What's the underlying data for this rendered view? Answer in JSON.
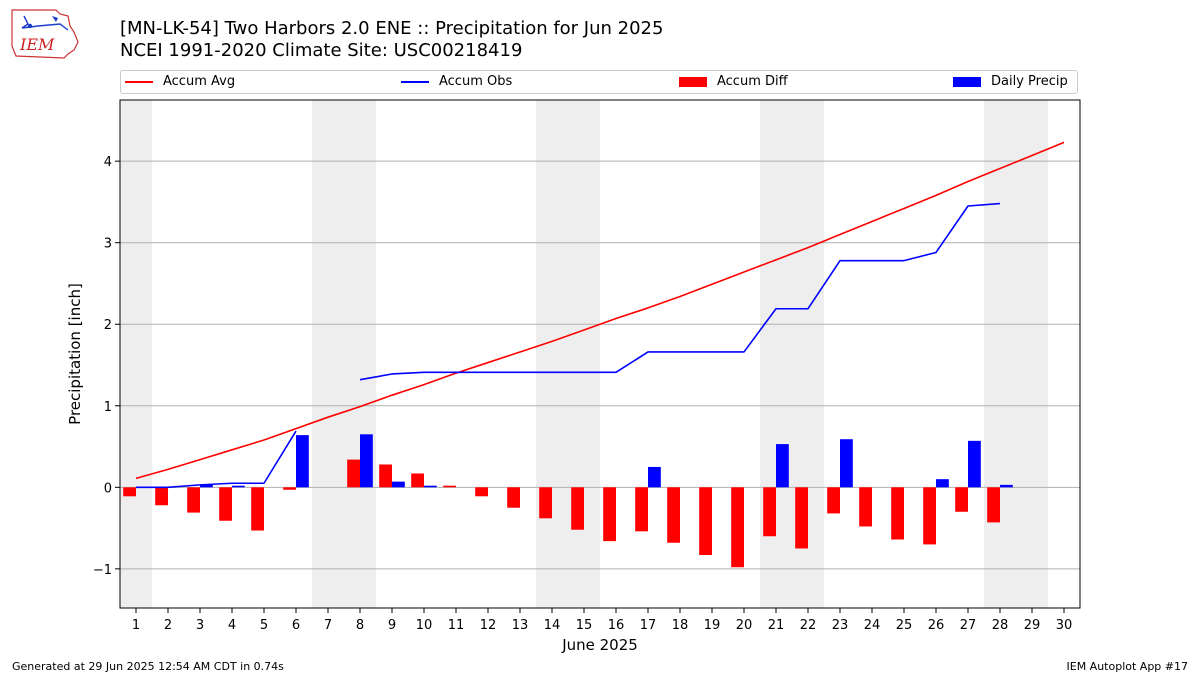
{
  "header": {
    "logo_text": "IEM",
    "title_line1": "[MN-LK-54] Two Harbors 2.0 ENE :: Precipitation for Jun 2025",
    "title_line2": "NCEI 1991-2020 Climate Site: USC00218419"
  },
  "footer": {
    "generated": "Generated at 29 Jun 2025 12:54 AM CDT in 0.74s",
    "app": "IEM Autoplot App #17"
  },
  "chart_data": {
    "type": "bar",
    "title": "[MN-LK-54] Two Harbors 2.0 ENE :: Precipitation for Jun 2025",
    "subtitle": "NCEI 1991-2020 Climate Site: USC00218419",
    "xlabel": "June 2025",
    "ylabel": "Precipitation [inch]",
    "xlim": [
      0.5,
      30.5
    ],
    "ylim": [
      -1.48,
      4.75
    ],
    "yticks": [
      -1,
      0,
      1,
      2,
      3,
      4
    ],
    "ytick_labels": [
      "−1",
      "0",
      "1",
      "2",
      "3",
      "4"
    ],
    "categories": [
      "1",
      "2",
      "3",
      "4",
      "5",
      "6",
      "7",
      "8",
      "9",
      "10",
      "11",
      "12",
      "13",
      "14",
      "15",
      "16",
      "17",
      "18",
      "19",
      "20",
      "21",
      "22",
      "23",
      "24",
      "25",
      "26",
      "27",
      "28",
      "29",
      "30"
    ],
    "weekend_shading": [
      [
        0.5,
        1.5
      ],
      [
        6.5,
        8.5
      ],
      [
        13.5,
        15.5
      ],
      [
        20.5,
        22.5
      ],
      [
        27.5,
        29.5
      ]
    ],
    "grid": "horizontal",
    "legend_position": "top",
    "colors": {
      "avg": "#ff0000",
      "obs": "#0000ff",
      "diff": "#ff0000",
      "daily": "#0000ff",
      "shade": "#eeeeee"
    },
    "series": [
      {
        "name": "Accum Avg",
        "kind": "line",
        "color": "#ff0000",
        "x": [
          1,
          2,
          3,
          4,
          5,
          6,
          7,
          8,
          9,
          10,
          11,
          12,
          13,
          14,
          15,
          16,
          17,
          18,
          19,
          20,
          21,
          22,
          23,
          24,
          25,
          26,
          27,
          28,
          29,
          30
        ],
        "values": [
          0.11,
          0.22,
          0.34,
          0.46,
          0.58,
          0.72,
          0.86,
          0.99,
          1.13,
          1.26,
          1.4,
          1.53,
          1.66,
          1.79,
          1.93,
          2.07,
          2.2,
          2.34,
          2.49,
          2.64,
          2.79,
          2.94,
          3.1,
          3.26,
          3.42,
          3.58,
          3.75,
          3.91,
          4.07,
          4.23
        ]
      },
      {
        "name": "Accum Obs",
        "kind": "line",
        "color": "#0000ff",
        "x": [
          1,
          2,
          3,
          4,
          5,
          6,
          7,
          8,
          9,
          10,
          11,
          12,
          13,
          14,
          15,
          16,
          17,
          18,
          19,
          20,
          21,
          22,
          23,
          24,
          25,
          26,
          27,
          28
        ],
        "values": [
          0.0,
          0.0,
          0.03,
          0.05,
          0.05,
          0.69,
          null,
          1.32,
          1.39,
          1.41,
          1.41,
          1.41,
          1.41,
          1.41,
          1.41,
          1.41,
          1.66,
          1.66,
          1.66,
          1.66,
          2.19,
          2.19,
          2.78,
          2.78,
          2.78,
          2.88,
          3.45,
          3.48
        ]
      },
      {
        "name": "Accum Diff",
        "kind": "bar",
        "color": "#ff0000",
        "x": [
          1,
          2,
          3,
          4,
          5,
          6,
          7,
          8,
          9,
          10,
          11,
          12,
          13,
          14,
          15,
          16,
          17,
          18,
          19,
          20,
          21,
          22,
          23,
          24,
          25,
          26,
          27,
          28
        ],
        "values": [
          -0.11,
          -0.22,
          -0.31,
          -0.41,
          -0.53,
          -0.03,
          null,
          0.34,
          0.28,
          0.17,
          0.02,
          -0.11,
          -0.25,
          -0.38,
          -0.52,
          -0.66,
          -0.54,
          -0.68,
          -0.83,
          -0.98,
          -0.6,
          -0.75,
          -0.32,
          -0.48,
          -0.64,
          -0.7,
          -0.3,
          -0.43
        ]
      },
      {
        "name": "Daily Precip",
        "kind": "bar",
        "color": "#0000ff",
        "x": [
          1,
          2,
          3,
          4,
          5,
          6,
          7,
          8,
          9,
          10,
          11,
          12,
          13,
          14,
          15,
          16,
          17,
          18,
          19,
          20,
          21,
          22,
          23,
          24,
          25,
          26,
          27,
          28
        ],
        "values": [
          0.0,
          0.0,
          0.03,
          0.02,
          0.0,
          0.64,
          null,
          0.65,
          0.07,
          0.02,
          0.0,
          0.0,
          0.0,
          0.0,
          0.0,
          0.0,
          0.25,
          0.0,
          0.0,
          0.0,
          0.53,
          0.0,
          0.59,
          0.0,
          0.0,
          0.1,
          0.57,
          0.03
        ]
      }
    ]
  }
}
